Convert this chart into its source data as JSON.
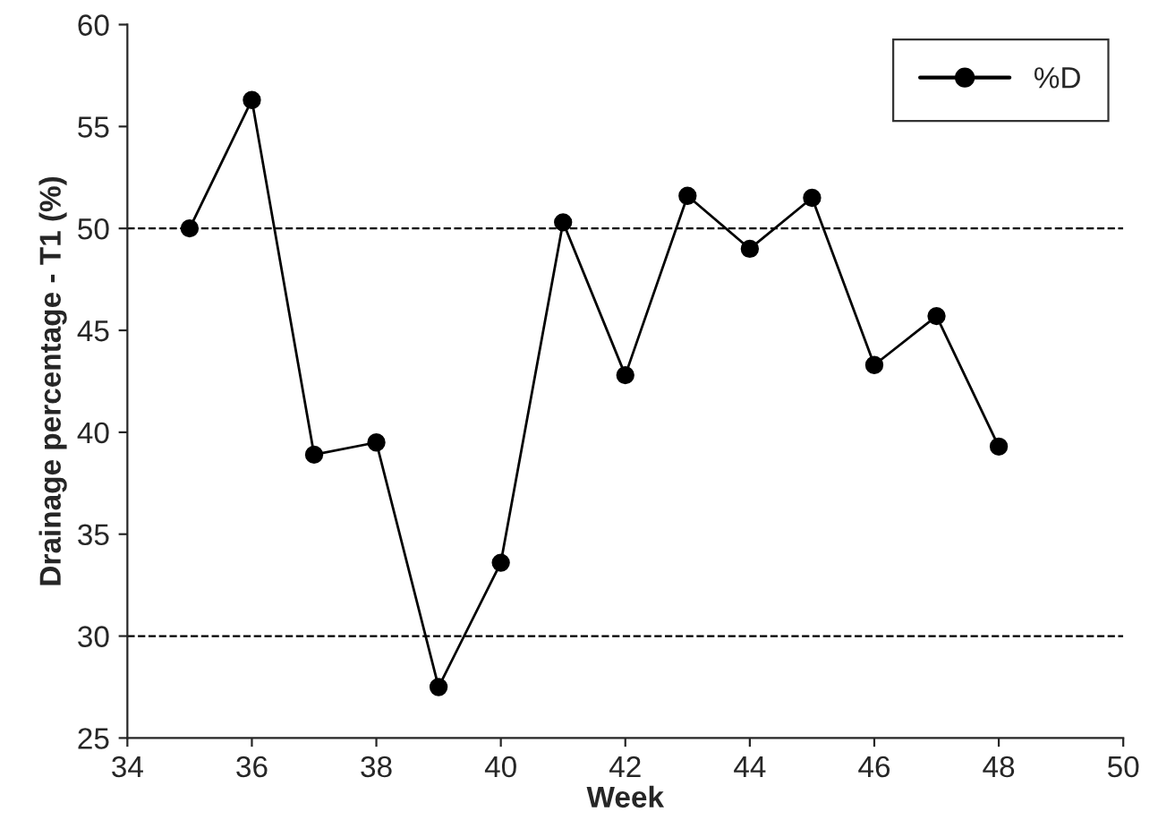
{
  "chart_data": {
    "type": "line",
    "xlabel": "Week",
    "ylabel": "Drainage percentage - T1 (%)",
    "x": [
      35,
      36,
      37,
      38,
      39,
      40,
      41,
      42,
      43,
      44,
      45,
      46,
      47,
      48
    ],
    "series": [
      {
        "name": "%D",
        "color": "#000000",
        "values": [
          50.0,
          56.3,
          38.9,
          39.5,
          27.5,
          33.6,
          50.3,
          42.8,
          51.6,
          49.0,
          51.5,
          43.3,
          45.7,
          39.3
        ]
      }
    ],
    "xlim": [
      34,
      50
    ],
    "xticks": [
      34,
      36,
      38,
      40,
      42,
      44,
      46,
      48,
      50
    ],
    "ylim": [
      25,
      60
    ],
    "yticks": [
      25,
      30,
      35,
      40,
      45,
      50,
      55,
      60
    ],
    "ref_lines": [
      {
        "axis": "y",
        "value": 50,
        "line_style": "dashed",
        "color": "#000000"
      },
      {
        "axis": "y",
        "value": 30,
        "line_style": "dashed",
        "color": "#000000"
      }
    ],
    "marker": "circle",
    "line_style": "solid",
    "legend": "top right",
    "grid": false
  }
}
